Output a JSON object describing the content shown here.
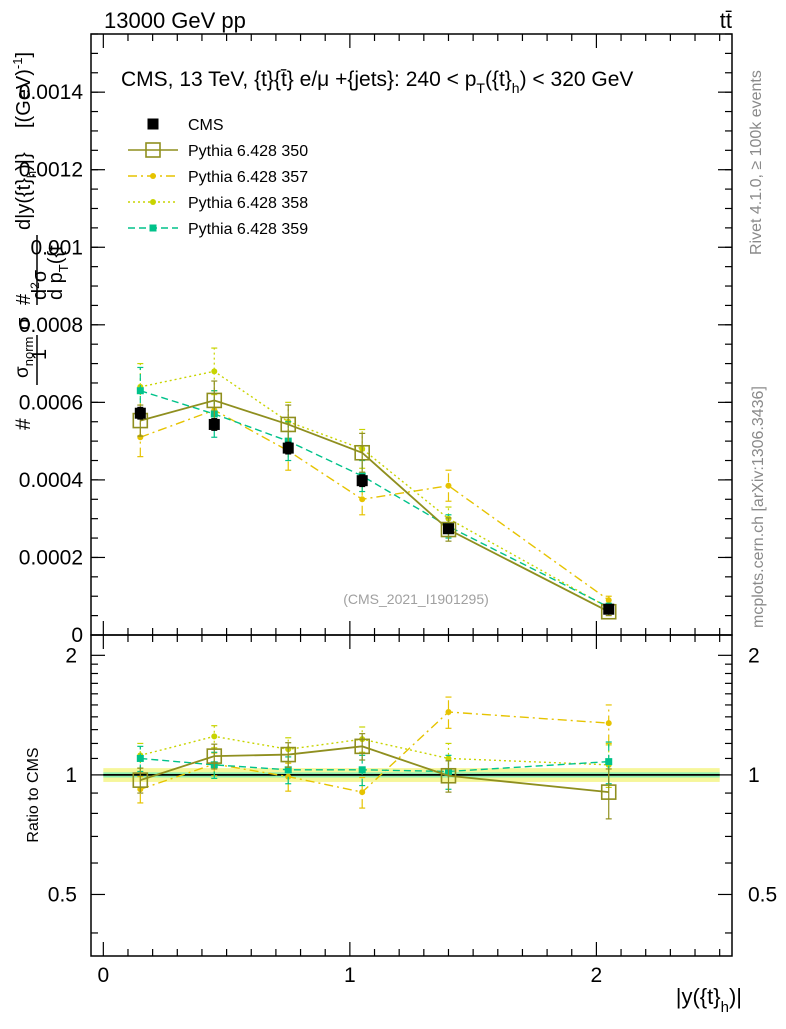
{
  "header": {
    "energy": "13000 GeV pp",
    "process": "tt̄"
  },
  "plot_title": "CMS, 13 TeV, {t}{t̄} e/μ +{jets}: 240 <  p_T({t}_h) < 320 GeV",
  "plot_title_parts": {
    "prefix": "CMS, 13 TeV, {t}{t̄} e/μ +{jets}: 240 <  p",
    "sub1": "T",
    "mid": "({t}",
    "sub2": "h",
    "suffix": ") < 320 GeV"
  },
  "analysis_id": "(CMS_2021_I1901295)",
  "side_labels": {
    "rivet": "Rivet 4.1.0, ≥ 100k events",
    "mcplots": "mcplots.cern.ch [arXiv:1306.3436]"
  },
  "colors": {
    "cms": "#000000",
    "p350": "#8f8f1f",
    "p357": "#e6c300",
    "p358": "#c8d400",
    "p359": "#00c28a",
    "band_outer": "#f6f69a",
    "band_inner": "#8ef0b0"
  },
  "chart_data": [
    {
      "type": "line",
      "panel": "main",
      "title": "CMS, 13 TeV, {t}{t̄} e/μ +{jets}: 240 <  p_T({t}_h) < 320 GeV",
      "xlabel": "|y({t}_h)|",
      "ylabel": "1/σ_norm d²σ/(d p_T({t}_h) d|y({t}_h)|) [(GeV)^-1]",
      "xlim": [
        -0.05,
        2.55
      ],
      "ylim": [
        0,
        0.00155
      ],
      "x_ticks": [
        0,
        1,
        2
      ],
      "y_ticks": [
        0,
        0.0002,
        0.0004,
        0.0006,
        0.0008,
        0.001,
        0.0012,
        0.0014
      ],
      "y_tick_labels": [
        "0",
        "0.0002",
        "0.0004",
        "0.0006",
        "0.0008",
        "0.001",
        "0.0012",
        "0.0014"
      ],
      "x": [
        0.15,
        0.45,
        0.75,
        1.05,
        1.4,
        2.05
      ],
      "legend": {
        "position": "top-left",
        "entries": [
          "CMS",
          "Pythia 6.428 350",
          "Pythia 6.428 357",
          "Pythia 6.428 358",
          "Pythia 6.428 359"
        ]
      },
      "series": [
        {
          "name": "CMS",
          "values": [
            0.000572,
            0.000543,
            0.000482,
            0.000398,
            0.000274,
            6.65e-05
          ],
          "errors": [
            1.5e-05,
            1.5e-05,
            1.5e-05,
            1.5e-05,
            1e-05,
            4e-06
          ]
        },
        {
          "name": "Pythia 6.428 350",
          "values": [
            0.000553,
            0.000605,
            0.000543,
            0.00047,
            0.000272,
            6e-05
          ],
          "errors": [
            4e-05,
            5e-05,
            5e-05,
            5e-05,
            3e-05,
            1e-05
          ]
        },
        {
          "name": "Pythia 6.428 357",
          "values": [
            0.00051,
            0.00058,
            0.000475,
            0.00035,
            0.000385,
            9e-05
          ],
          "errors": [
            5e-05,
            5e-05,
            5e-05,
            4e-05,
            4e-05,
            1e-05
          ]
        },
        {
          "name": "Pythia 6.428 358",
          "values": [
            0.00064,
            0.00068,
            0.00055,
            0.00048,
            0.0003,
            7e-05
          ],
          "errors": [
            6e-05,
            6e-05,
            5e-05,
            5e-05,
            3e-05,
            1e-05
          ]
        },
        {
          "name": "Pythia 6.428 359",
          "values": [
            0.00063,
            0.00057,
            0.0005,
            0.00041,
            0.00028,
            7.2e-05
          ],
          "errors": [
            6e-05,
            6e-05,
            5e-05,
            4e-05,
            3e-05,
            1e-05
          ]
        }
      ]
    },
    {
      "type": "line",
      "panel": "ratio",
      "xlabel": "|y({t}_h)|",
      "ylabel": "Ratio to CMS",
      "xlim": [
        -0.05,
        2.55
      ],
      "ylim": [
        0.35,
        2.25
      ],
      "y_scale": "log",
      "y_ticks": [
        0.5,
        1,
        2
      ],
      "y_tick_labels": [
        "0.5",
        "1",
        "2"
      ],
      "x": [
        0.15,
        0.45,
        0.75,
        1.05,
        1.4,
        2.05
      ],
      "band": {
        "inner": [
          0.985,
          1.015
        ],
        "outer": [
          0.96,
          1.04
        ]
      },
      "series": [
        {
          "name": "Pythia 6.428 350",
          "values": [
            0.97,
            1.115,
            1.125,
            1.18,
            0.995,
            0.905
          ],
          "errors": [
            0.07,
            0.08,
            0.08,
            0.09,
            0.09,
            0.13
          ]
        },
        {
          "name": "Pythia 6.428 357",
          "values": [
            0.92,
            1.065,
            0.99,
            0.905,
            1.44,
            1.35
          ],
          "errors": [
            0.07,
            0.07,
            0.08,
            0.08,
            0.13,
            0.15
          ]
        },
        {
          "name": "Pythia 6.428 358",
          "values": [
            1.12,
            1.25,
            1.16,
            1.23,
            1.1,
            1.06
          ],
          "errors": [
            0.08,
            0.08,
            0.08,
            0.09,
            0.1,
            0.13
          ]
        },
        {
          "name": "Pythia 6.428 359",
          "values": [
            1.1,
            1.06,
            1.03,
            1.03,
            1.02,
            1.08
          ],
          "errors": [
            0.08,
            0.08,
            0.08,
            0.09,
            0.1,
            0.13
          ]
        }
      ]
    }
  ]
}
